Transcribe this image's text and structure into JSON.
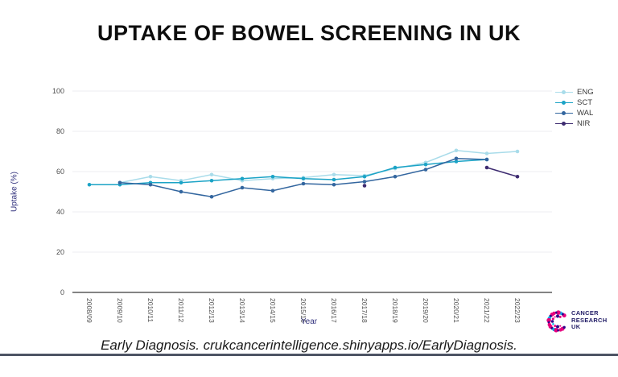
{
  "slide": {
    "title": "UPTAKE OF BOWEL SCREENING IN UK",
    "footer": "Early Diagnosis. crukcancerintelligence.shinyapps.io/EarlyDiagnosis.",
    "logo": {
      "line1": "CANCER",
      "line2": "RESEARCH",
      "line3": "UK"
    }
  },
  "chart_data": {
    "type": "line",
    "title": "",
    "xlabel": "Year",
    "ylabel": "Uptake (%)",
    "ylim": [
      0,
      100
    ],
    "yticks": [
      0,
      20,
      40,
      60,
      80,
      100
    ],
    "grid": true,
    "legend_position": "top-right",
    "categories": [
      "2008/09",
      "2009/10",
      "2010/11",
      "2011/12",
      "2012/13",
      "2013/14",
      "2014/15",
      "2015/16",
      "2016/17",
      "2017/18",
      "2018/19",
      "2019/20",
      "2020/21",
      "2021/22",
      "2022/23"
    ],
    "series": [
      {
        "name": "ENG",
        "color": "#a9dcea",
        "values": [
          null,
          54.5,
          57.5,
          55.5,
          58.5,
          55.5,
          56.5,
          57,
          58.5,
          58,
          61.5,
          64.5,
          70.5,
          69,
          70
        ]
      },
      {
        "name": "SCT",
        "color": "#1ba3c6",
        "values": [
          53.5,
          53.5,
          54.5,
          54.5,
          55.5,
          56.5,
          57.5,
          56.5,
          56,
          57.5,
          62,
          63.5,
          65,
          66,
          null
        ]
      },
      {
        "name": "WAL",
        "color": "#33669f",
        "values": [
          null,
          54.5,
          53.5,
          50,
          47.5,
          52,
          50.5,
          54,
          53.5,
          55,
          57.5,
          61,
          66.5,
          66,
          null
        ]
      },
      {
        "name": "NIR",
        "color": "#3d2b70",
        "values": [
          null,
          null,
          null,
          null,
          null,
          null,
          null,
          null,
          null,
          53,
          null,
          null,
          null,
          62,
          57.5
        ]
      }
    ],
    "colors": {
      "axis_line": "#3a3a3a",
      "gridline": "#ededf2",
      "tick_label": "#4d4d4d",
      "axis_title": "#33337e"
    }
  },
  "logo_colors": {
    "pink": "#e6007e",
    "navy": "#2e008b",
    "blue": "#00b6ed"
  }
}
